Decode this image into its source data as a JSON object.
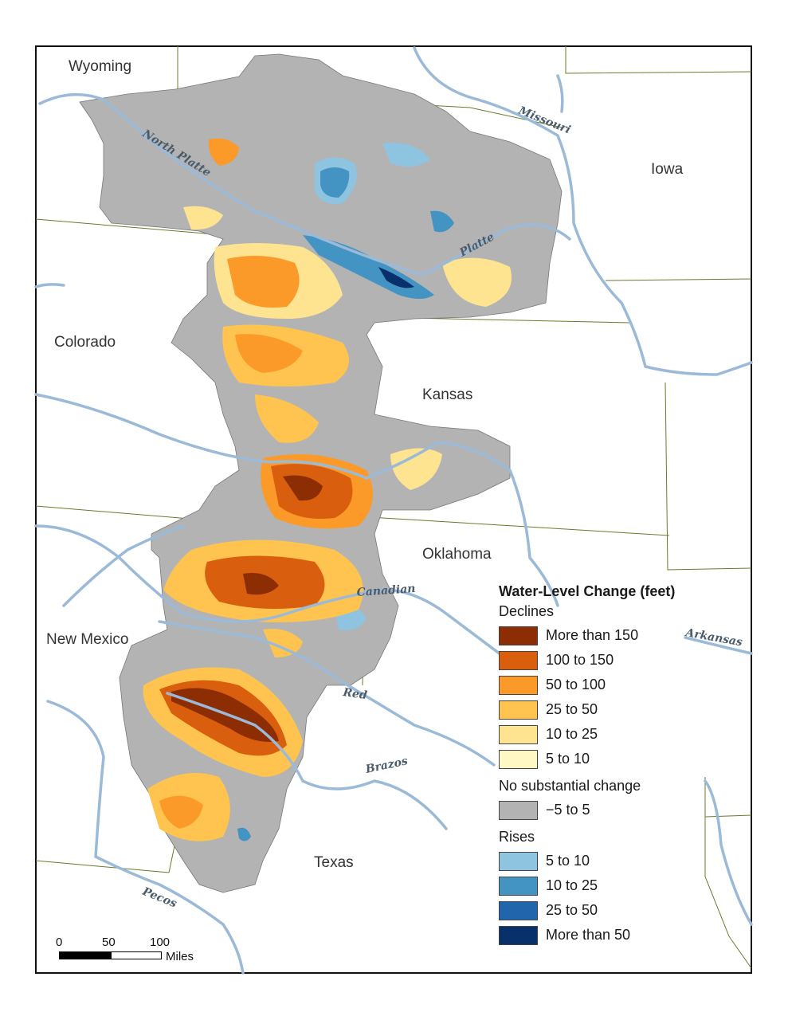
{
  "states": {
    "wyoming": "Wyoming",
    "iowa": "Iowa",
    "colorado": "Colorado",
    "kansas": "Kansas",
    "oklahoma": "Oklahoma",
    "new_mexico": "New Mexico",
    "texas": "Texas"
  },
  "rivers": {
    "missouri": "Missouri",
    "north_platte": "North Platte",
    "platte": "Platte",
    "canadian": "Canadian",
    "arkansas": "Arkansas",
    "red": "Red",
    "brazos": "Brazos",
    "pecos": "Pecos"
  },
  "legend": {
    "title": "Water-Level Change (feet)",
    "declines_label": "Declines",
    "declines": [
      {
        "label": "More than 150",
        "color": "#8c2d04"
      },
      {
        "label": "100 to 150",
        "color": "#d95f0e"
      },
      {
        "label": "50 to 100",
        "color": "#fb9a29"
      },
      {
        "label": "25 to 50",
        "color": "#fec44f"
      },
      {
        "label": "10 to 25",
        "color": "#fee391"
      },
      {
        "label": "5 to 10",
        "color": "#fff7c4"
      }
    ],
    "no_change_label": "No substantial change",
    "no_change": {
      "label": "−5 to 5",
      "color": "#b3b3b3"
    },
    "rises_label": "Rises",
    "rises": [
      {
        "label": "5 to 10",
        "color": "#8ec4e0"
      },
      {
        "label": "10 to 25",
        "color": "#4393c3"
      },
      {
        "label": "25 to 50",
        "color": "#2166ac"
      },
      {
        "label": "More than 50",
        "color": "#08306b"
      }
    ]
  },
  "scale": {
    "ticks": [
      "0",
      "50",
      "100"
    ],
    "unit": "Miles"
  },
  "colors": {
    "river": "#9bbad8",
    "boundary": "#6b7a2e",
    "aquifer": "#b3b3b3"
  }
}
